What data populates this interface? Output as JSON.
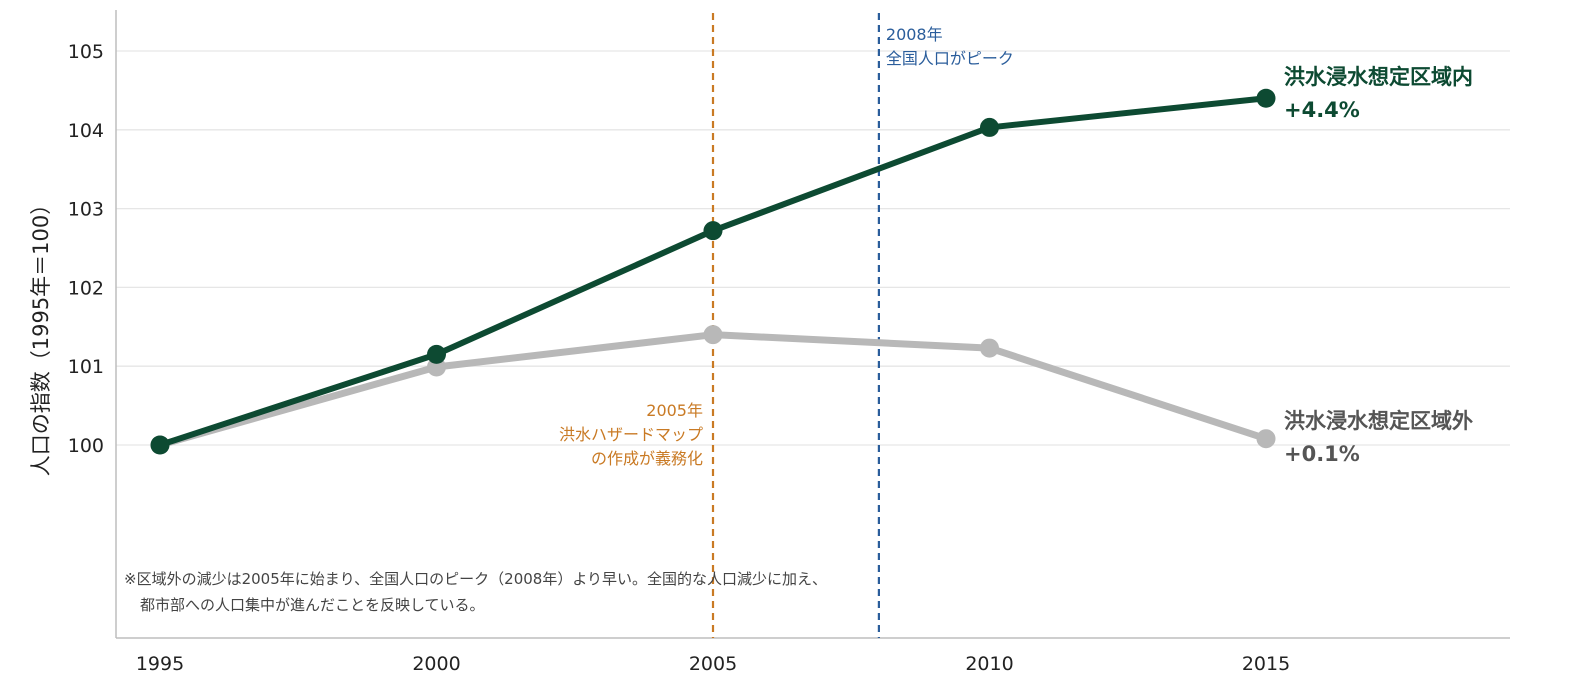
{
  "chart_data": {
    "type": "line",
    "ylabel": "人口の指数（1995年＝100）",
    "x": [
      1995,
      2000,
      2005,
      2010,
      2015
    ],
    "xlim": [
      1994,
      2019
    ],
    "ylim": [
      98.5,
      105.5
    ],
    "yticks": [
      100,
      101,
      102,
      103,
      104,
      105
    ],
    "grid": true,
    "series": [
      {
        "name": "洪水浸水想定区域内",
        "change_label": "+4.4%",
        "color": "#0d4a32",
        "values": [
          100.0,
          101.15,
          102.72,
          104.03,
          104.4
        ]
      },
      {
        "name": "洪水浸水想定区域外",
        "change_label": "+0.1%",
        "color": "#b8b8b8",
        "values": [
          100.0,
          100.99,
          101.4,
          101.23,
          100.08
        ]
      }
    ],
    "annotations": [
      {
        "x": 2005,
        "color": "#c97a24",
        "lines": [
          "2005年",
          "洪水ハザードマップ",
          "の作成が義務化"
        ]
      },
      {
        "x": 2008,
        "color": "#2a5d9b",
        "lines": [
          "2008年",
          "全国人口がピーク"
        ]
      }
    ],
    "note_lines": [
      "※区域外の減少は2005年に始まり、全国人口のピーク（2008年）より早い。全国的な人口減少に加え、",
      "都市部への人口集中が進んだことを反映している。"
    ]
  }
}
